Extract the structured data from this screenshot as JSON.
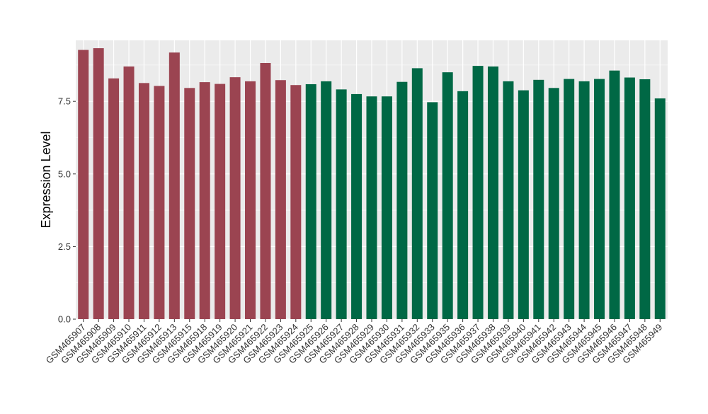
{
  "chart_data": {
    "type": "bar",
    "title": "",
    "xlabel": "",
    "ylabel": "Expression Level",
    "ylim": [
      0,
      9.6
    ],
    "yticks": [
      0.0,
      2.5,
      5.0,
      7.5
    ],
    "ytick_labels": [
      "0.0",
      "2.5",
      "5.0",
      "7.5"
    ],
    "grid": true,
    "legend": "none",
    "panel_background": "#ebebeb",
    "grid_color": "#ffffff",
    "group_colors": {
      "group_1": "#9b4451",
      "group_2": "#006845"
    },
    "categories": [
      "GSM465907",
      "GSM465908",
      "GSM465909",
      "GSM465910",
      "GSM465911",
      "GSM465912",
      "GSM465913",
      "GSM465915",
      "GSM465918",
      "GSM465919",
      "GSM465920",
      "GSM465921",
      "GSM465922",
      "GSM465923",
      "GSM465924",
      "GSM465925",
      "GSM465926",
      "GSM465927",
      "GSM465928",
      "GSM465929",
      "GSM465930",
      "GSM465931",
      "GSM465932",
      "GSM465933",
      "GSM465935",
      "GSM465936",
      "GSM465937",
      "GSM465938",
      "GSM465939",
      "GSM465940",
      "GSM465941",
      "GSM465942",
      "GSM465943",
      "GSM465944",
      "GSM465945",
      "GSM465946",
      "GSM465947",
      "GSM465948",
      "GSM465949"
    ],
    "values": [
      9.27,
      9.33,
      8.29,
      8.7,
      8.13,
      8.03,
      9.18,
      7.96,
      8.16,
      8.1,
      8.33,
      8.19,
      8.82,
      8.23,
      8.06,
      8.09,
      8.19,
      7.91,
      7.75,
      7.67,
      7.67,
      8.17,
      8.64,
      7.47,
      8.5,
      7.85,
      8.72,
      8.7,
      8.19,
      7.88,
      8.24,
      7.96,
      8.27,
      8.19,
      8.27,
      8.56,
      8.32,
      8.26,
      7.6
    ],
    "groups": [
      "group_1",
      "group_1",
      "group_1",
      "group_1",
      "group_1",
      "group_1",
      "group_1",
      "group_1",
      "group_1",
      "group_1",
      "group_1",
      "group_1",
      "group_1",
      "group_1",
      "group_1",
      "group_2",
      "group_2",
      "group_2",
      "group_2",
      "group_2",
      "group_2",
      "group_2",
      "group_2",
      "group_2",
      "group_2",
      "group_2",
      "group_2",
      "group_2",
      "group_2",
      "group_2",
      "group_2",
      "group_2",
      "group_2",
      "group_2",
      "group_2",
      "group_2",
      "group_2",
      "group_2",
      "group_2"
    ]
  }
}
